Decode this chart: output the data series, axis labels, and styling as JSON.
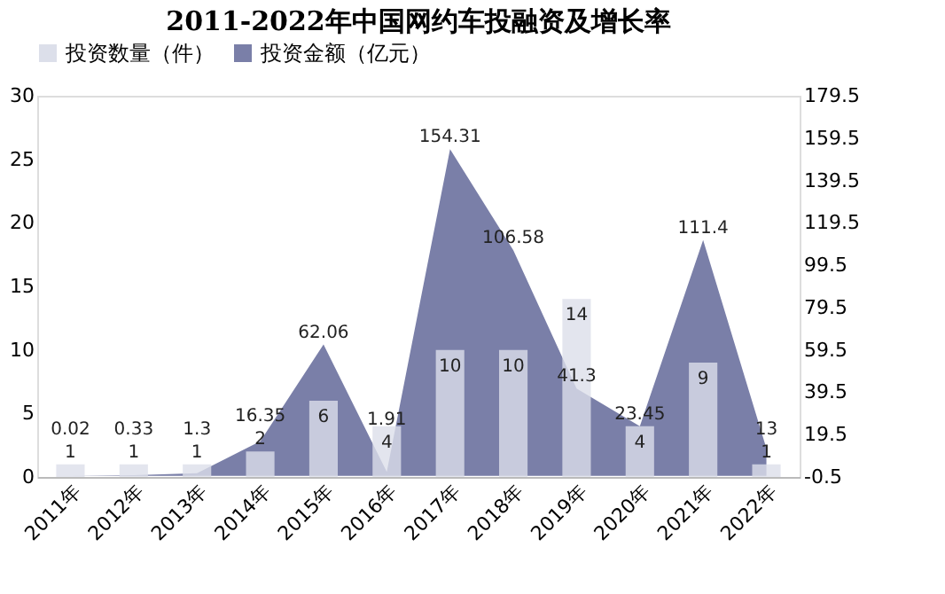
{
  "chart_data": {
    "type": "bar",
    "title": "2011-2022年中国网约车投融资及增长率",
    "categories": [
      "2011年",
      "2012年",
      "2013年",
      "2014年",
      "2015年",
      "2016年",
      "2017年",
      "2018年",
      "2019年",
      "2020年",
      "2021年",
      "2022年"
    ],
    "series": [
      {
        "name": "投资数量（件）",
        "color": "#dcdfea",
        "values": [
          1,
          1,
          1,
          2,
          6,
          4,
          10,
          10,
          14,
          4,
          9,
          1
        ]
      },
      {
        "name": "投资金额（亿元）",
        "type": "area",
        "axis": "y2",
        "color": "#7a7fa8",
        "values": [
          0.02,
          0.33,
          1.3,
          16.35,
          62.06,
          1.91,
          154.31,
          106.58,
          41.3,
          23.45,
          111.4,
          13
        ]
      }
    ],
    "ylim": [
      0,
      30
    ],
    "yticks": [
      0,
      5,
      10,
      15,
      20,
      25,
      30
    ],
    "y2lim": [
      -0.5,
      179.5
    ],
    "y2ticks": [
      -0.5,
      19.5,
      39.5,
      59.5,
      79.5,
      99.5,
      119.5,
      139.5,
      159.5,
      179.5
    ],
    "data_labels": true,
    "legend": "top",
    "grid": false
  }
}
